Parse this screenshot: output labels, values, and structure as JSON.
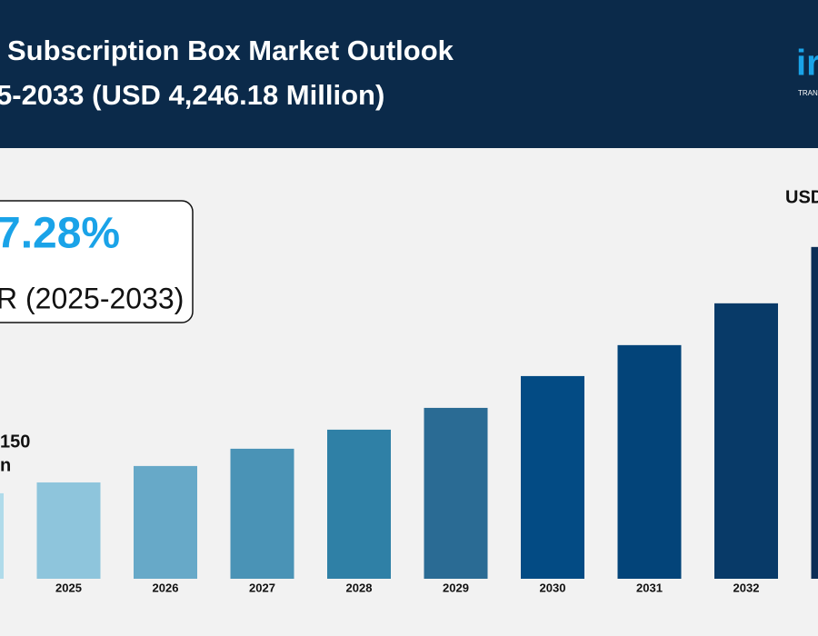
{
  "chart_data": {
    "type": "bar",
    "title": "Subscription Box Market Outlook",
    "subtitle": "5-2033 (USD 4,246.18 Million)",
    "logo": {
      "mark": "ir",
      "tagline": "TRAN"
    },
    "callout": {
      "value": "7.28%",
      "label": "R (2025-2033)"
    },
    "annotations": [
      {
        "lines": [
          "150",
          "n"
        ]
      },
      {
        "lines": [
          "USD"
        ]
      }
    ],
    "categories": [
      null,
      "2025",
      "2026",
      "2027",
      "2028",
      "2029",
      "2030",
      "2031",
      "2032",
      null
    ],
    "values": [
      1094,
      1233,
      1443,
      1664,
      1908,
      2187,
      2594,
      2990,
      3525,
      4246.18
    ],
    "colors": [
      "#b0dbea",
      "#8ec5dc",
      "#67a9c8",
      "#4a93b6",
      "#2f80a6",
      "#2a6b94",
      "#034b84",
      "#034479",
      "#083a68",
      "#0b2e57"
    ],
    "ylim": [
      0,
      5000
    ]
  }
}
